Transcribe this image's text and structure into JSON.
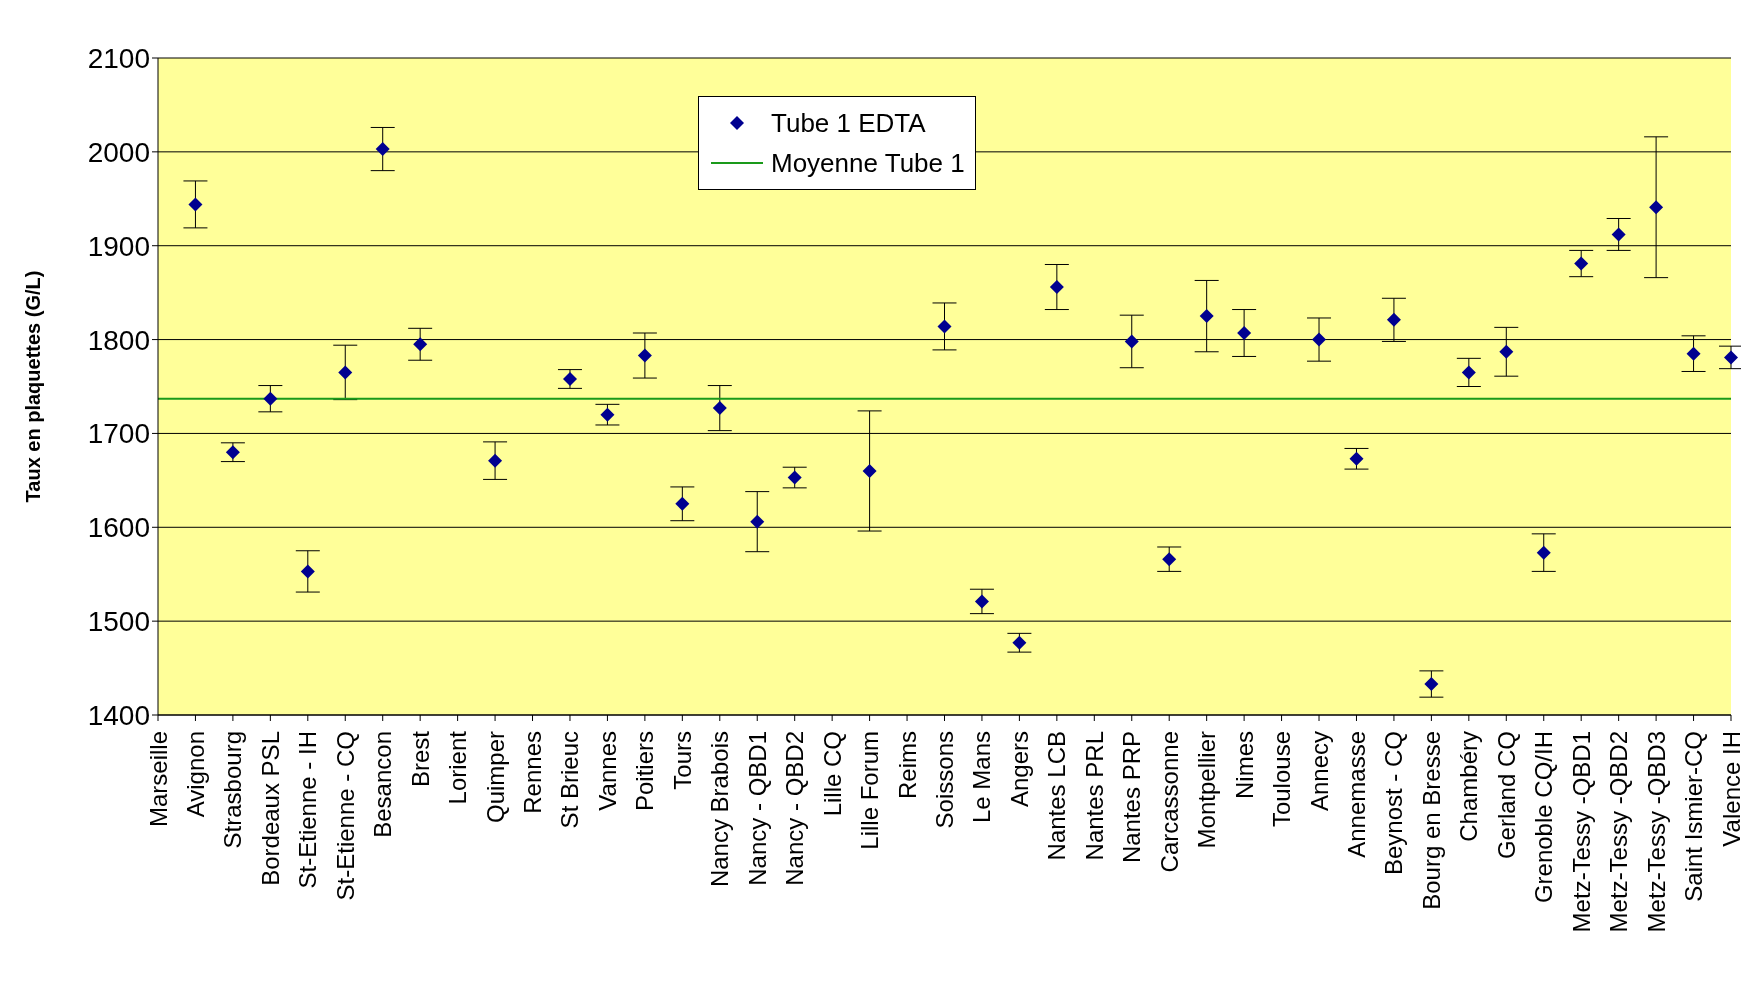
{
  "chart_data": {
    "type": "scatter",
    "ylabel": "Taux en plaquettes (G/L)",
    "categories": [
      "Marseille",
      "Avignon",
      "Strasbourg",
      "Bordeaux PSL",
      "St-Etienne - IH",
      "St-Etienne - CQ",
      "Besancon",
      "Brest",
      "Lorient",
      "Quimper",
      "Rennes",
      "St Brieuc",
      "Vannes",
      "Poitiers",
      "Tours",
      "Nancy Brabois",
      "Nancy - QBD1",
      "Nancy - QBD2",
      "Lille CQ",
      "Lille Forum",
      "Reims",
      "Soissons",
      "Le Mans",
      "Angers",
      "Nantes LCB",
      "Nantes PRL",
      "Nantes PRP",
      "Carcassonne",
      "Montpellier",
      "Nimes",
      "Toulouse",
      "Annecy",
      "Annemasse",
      "Beynost - CQ",
      "Bourg en Bresse",
      "Chambéry",
      "Gerland CQ",
      "Grenoble CQ/IH",
      "Metz-Tessy -QBD1",
      "Metz-Tessy -QBD2",
      "Metz-Tessy -QBD3",
      "Saint Ismier-CQ",
      "Valence IH"
    ],
    "series": [
      {
        "name": "Tube 1 EDTA",
        "color": "#000090",
        "marker": "diamond",
        "values": [
          null,
          1944,
          1680,
          1737,
          1553,
          1765,
          2003,
          1795,
          null,
          1671,
          null,
          1758,
          1720,
          1783,
          1625,
          1727,
          1606,
          1653,
          null,
          1660,
          null,
          1814,
          1521,
          1477,
          1856,
          null,
          1798,
          1566,
          1825,
          1807,
          null,
          1800,
          1673,
          1821,
          1433,
          1765,
          1787,
          1573,
          1881,
          1912,
          1941,
          1785,
          1781
        ],
        "errors": [
          null,
          25,
          10,
          14,
          22,
          29,
          23,
          17,
          null,
          20,
          null,
          10,
          11,
          24,
          18,
          24,
          32,
          11,
          null,
          64,
          null,
          25,
          13,
          10,
          24,
          null,
          28,
          13,
          38,
          25,
          null,
          23,
          11,
          23,
          14,
          15,
          26,
          20,
          14,
          17,
          75,
          19,
          12
        ]
      },
      {
        "name": "Moyenne Tube 1",
        "type": "line",
        "color": "#1a9a1a",
        "marker": "none",
        "values": [
          1737,
          1737,
          1737,
          1737,
          1737,
          1737,
          1737,
          1737,
          1737,
          1737,
          1737,
          1737,
          1737,
          1737,
          1737,
          1737,
          1737,
          1737,
          1737,
          1737,
          1737,
          1737,
          1737,
          1737,
          1737,
          1737,
          1737,
          1737,
          1737,
          1737,
          1737,
          1737,
          1737,
          1737,
          1737,
          1737,
          1737,
          1737,
          1737,
          1737,
          1737,
          1737,
          1737
        ]
      }
    ],
    "ylim": [
      1400,
      2100
    ],
    "yticks": [
      1400,
      1500,
      1600,
      1700,
      1800,
      1900,
      2000,
      2100
    ],
    "grid": "y",
    "legend": "top"
  }
}
